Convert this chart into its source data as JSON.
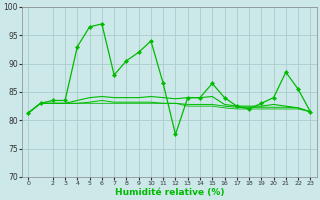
{
  "xlabel": "Humidité relative (%)",
  "background_color": "#cce8e8",
  "grid_color": "#aacccc",
  "line_color": "#00bb00",
  "xlim": [
    -0.5,
    23.5
  ],
  "ylim": [
    70,
    100
  ],
  "yticks": [
    70,
    75,
    80,
    85,
    90,
    95,
    100
  ],
  "xticks": [
    0,
    2,
    3,
    4,
    5,
    6,
    7,
    8,
    9,
    10,
    11,
    12,
    13,
    14,
    15,
    16,
    17,
    18,
    19,
    20,
    21,
    22,
    23
  ],
  "series1": [
    81.3,
    83.0,
    83.5,
    83.5,
    93.0,
    96.5,
    97.0,
    88.0,
    90.5,
    92.0,
    94.0,
    86.5,
    77.5,
    84.0,
    84.0,
    86.5,
    84.0,
    82.5,
    82.0,
    83.0,
    84.0,
    88.5,
    85.5,
    81.5
  ],
  "series2": [
    81.3,
    83.0,
    83.0,
    83.0,
    83.5,
    84.0,
    84.2,
    84.0,
    84.0,
    84.0,
    84.2,
    84.0,
    83.8,
    84.0,
    84.0,
    84.2,
    82.8,
    82.5,
    82.5,
    82.5,
    82.8,
    82.5,
    82.2,
    81.5
  ],
  "series3": [
    81.3,
    83.0,
    83.0,
    83.0,
    83.0,
    83.2,
    83.5,
    83.2,
    83.2,
    83.2,
    83.2,
    83.0,
    83.0,
    82.8,
    82.8,
    82.8,
    82.5,
    82.3,
    82.3,
    82.3,
    82.3,
    82.3,
    82.2,
    81.5
  ],
  "series4": [
    81.3,
    83.0,
    83.0,
    83.0,
    83.0,
    83.0,
    83.0,
    83.0,
    83.0,
    83.0,
    83.0,
    83.0,
    83.0,
    82.5,
    82.5,
    82.5,
    82.2,
    82.0,
    82.0,
    82.0,
    82.0,
    82.0,
    82.0,
    81.5
  ]
}
